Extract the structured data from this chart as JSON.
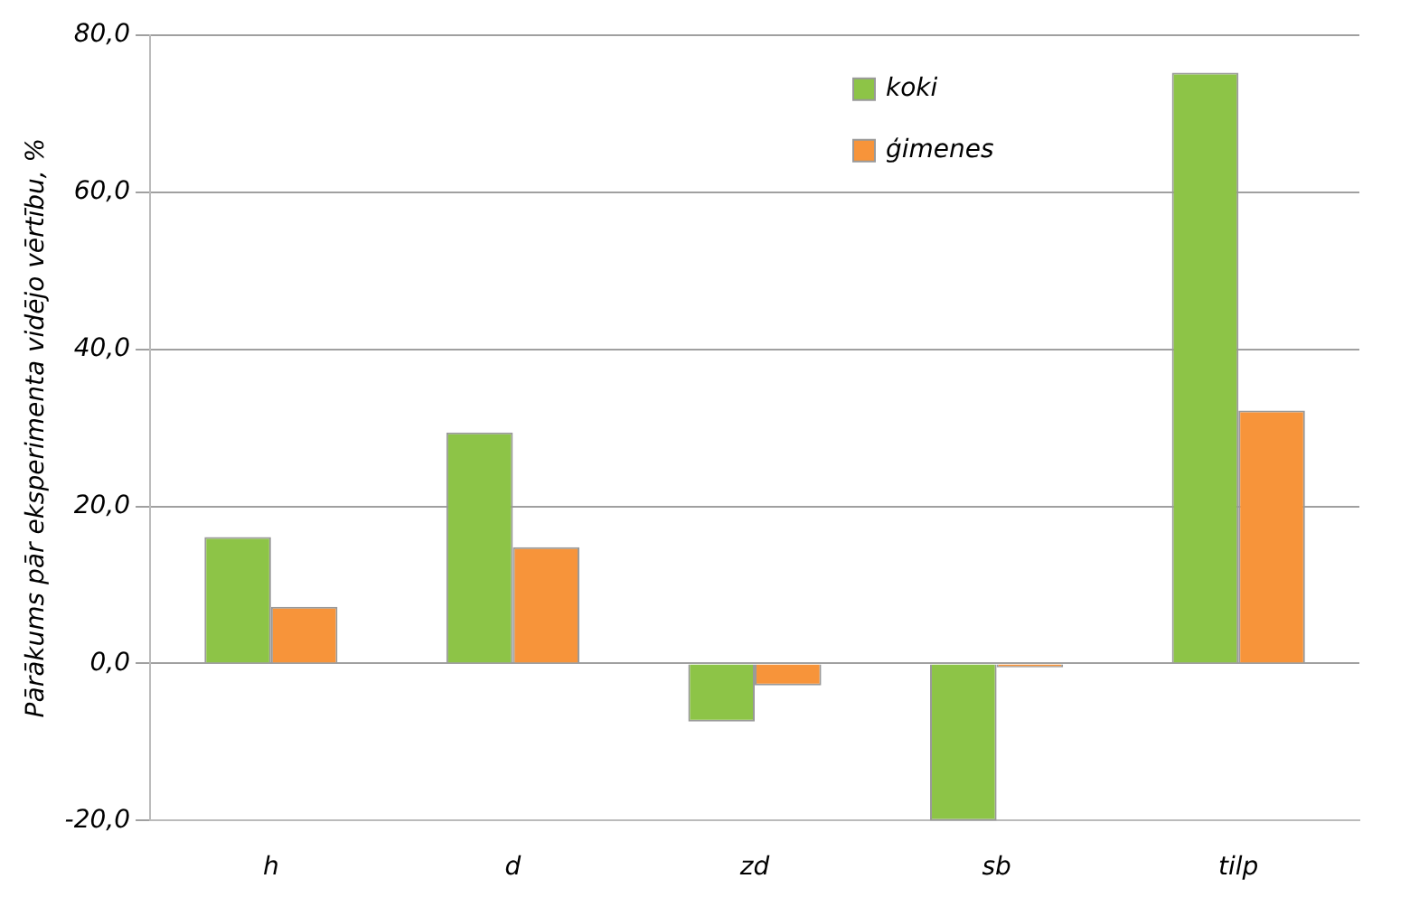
{
  "chart_data": {
    "type": "bar",
    "ylabel": "Pārākums pār eksperimenta vidējo vērtību, %",
    "categories": [
      "h",
      "d",
      "zd",
      "sb",
      "tilp"
    ],
    "series": [
      {
        "name": "koki",
        "color": "#8dc447",
        "values": [
          16.1,
          29.4,
          -7.4,
          -20,
          75.2
        ]
      },
      {
        "name": "ģimenes",
        "color": "#f7943a",
        "values": [
          7.2,
          14.8,
          -2.8,
          -0.5,
          32.2
        ]
      }
    ],
    "ylim": [
      -20,
      80
    ],
    "yticks": [
      {
        "value": -20,
        "label": "-20,0"
      },
      {
        "value": 0,
        "label": "0,0"
      },
      {
        "value": 20,
        "label": "20,0"
      },
      {
        "value": 40,
        "label": "40,0"
      },
      {
        "value": 60,
        "label": "60,0"
      },
      {
        "value": 80,
        "label": "80,0"
      }
    ],
    "grid": "y",
    "legend": "top right"
  }
}
